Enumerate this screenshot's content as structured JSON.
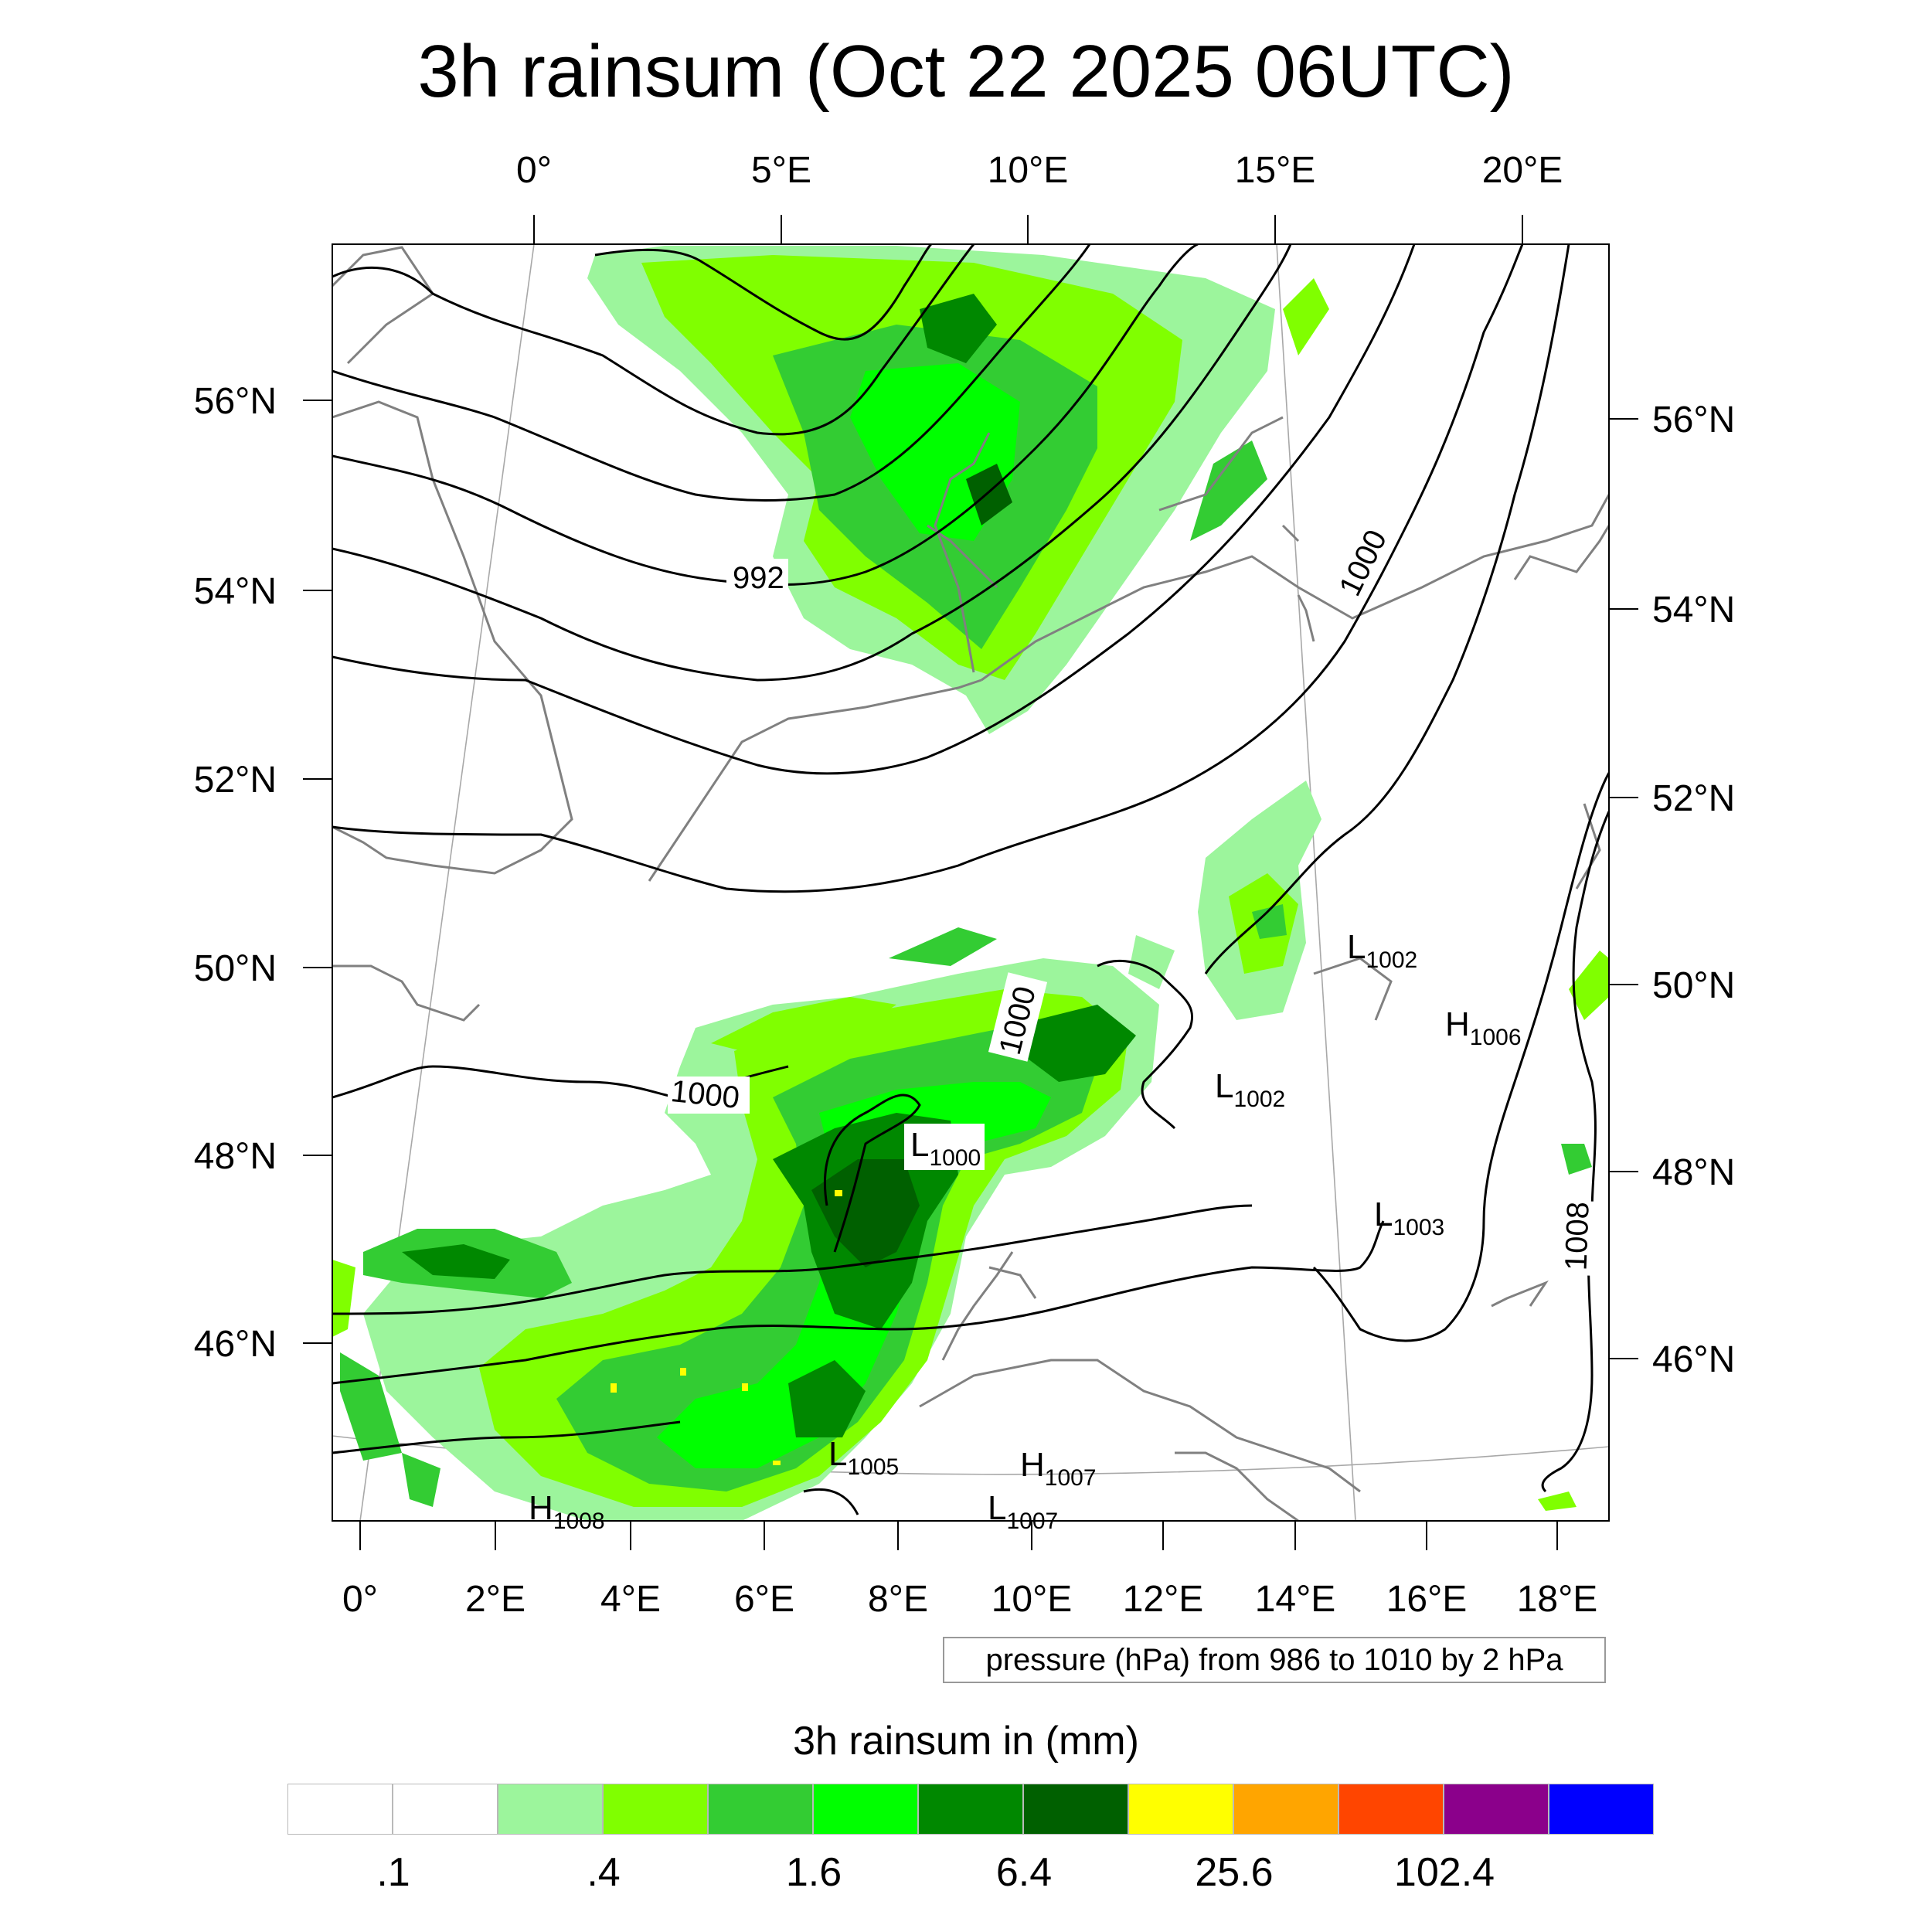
{
  "title": "3h rainsum (Oct 22 2025 06UTC)",
  "map": {
    "top_lon_labels": [
      "0°",
      "5°E",
      "10°E",
      "15°E",
      "20°E"
    ],
    "bottom_lon_labels": [
      "0°",
      "2°E",
      "4°E",
      "6°E",
      "8°E",
      "10°E",
      "12°E",
      "14°E",
      "16°E",
      "18°E"
    ],
    "left_lat_labels": [
      "56°N",
      "54°N",
      "52°N",
      "50°N",
      "48°N",
      "46°N"
    ],
    "right_lat_labels": [
      "56°N",
      "54°N",
      "52°N",
      "50°N",
      "48°N",
      "46°N"
    ],
    "contour_labels": [
      "992",
      "1000",
      "1000",
      "1000",
      "1008"
    ],
    "pressure_centers": [
      {
        "type": "L",
        "value": "1002"
      },
      {
        "type": "H",
        "value": "1006"
      },
      {
        "type": "L",
        "value": "1002"
      },
      {
        "type": "L",
        "value": "1000"
      },
      {
        "type": "L",
        "value": "1003"
      },
      {
        "type": "L",
        "value": "1005"
      },
      {
        "type": "H",
        "value": "1007"
      },
      {
        "type": "L",
        "value": "1007"
      },
      {
        "type": "H",
        "value": "1008"
      }
    ]
  },
  "info_box": "pressure (hPa) from 986 to 1010 by 2 hPa",
  "colorbar": {
    "title": "3h rainsum in (mm)",
    "colors": [
      "#ffffff",
      "#ffffff",
      "#9cf59c",
      "#80ff00",
      "#33cc33",
      "#00ff00",
      "#008800",
      "#006000",
      "#ffff00",
      "#ffa500",
      "#ff4500",
      "#8b008b",
      "#0000ff"
    ],
    "labels": [
      ".1",
      ".4",
      "1.6",
      "6.4",
      "25.6",
      "102.4"
    ]
  }
}
